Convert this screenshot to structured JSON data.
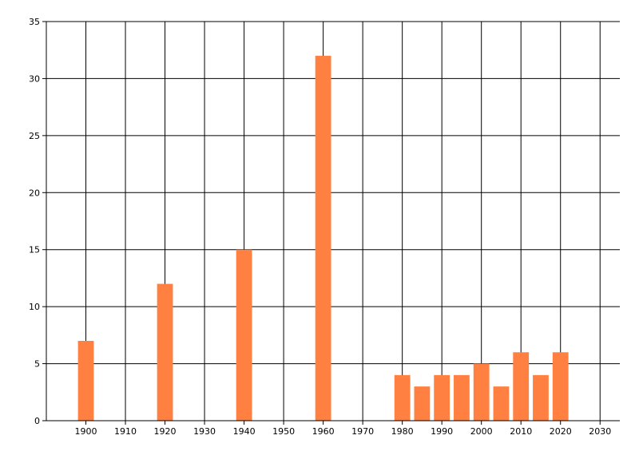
{
  "chart_data": {
    "type": "bar",
    "x": [
      1900,
      1920,
      1940,
      1960,
      1980,
      1985,
      1990,
      1995,
      2000,
      2005,
      2010,
      2015,
      2020
    ],
    "values": [
      7,
      12,
      15,
      32,
      4,
      3,
      4,
      4,
      5,
      3,
      6,
      4,
      6
    ],
    "color": "#ff8040",
    "xlim": [
      1890,
      2035
    ],
    "xticks": [
      1900,
      1910,
      1920,
      1930,
      1940,
      1950,
      1960,
      1970,
      1980,
      1990,
      2000,
      2010,
      2020,
      2030
    ],
    "ylim": [
      0,
      35
    ],
    "yticks": [
      0,
      5,
      10,
      15,
      20,
      25,
      30,
      35
    ],
    "grid": true
  }
}
